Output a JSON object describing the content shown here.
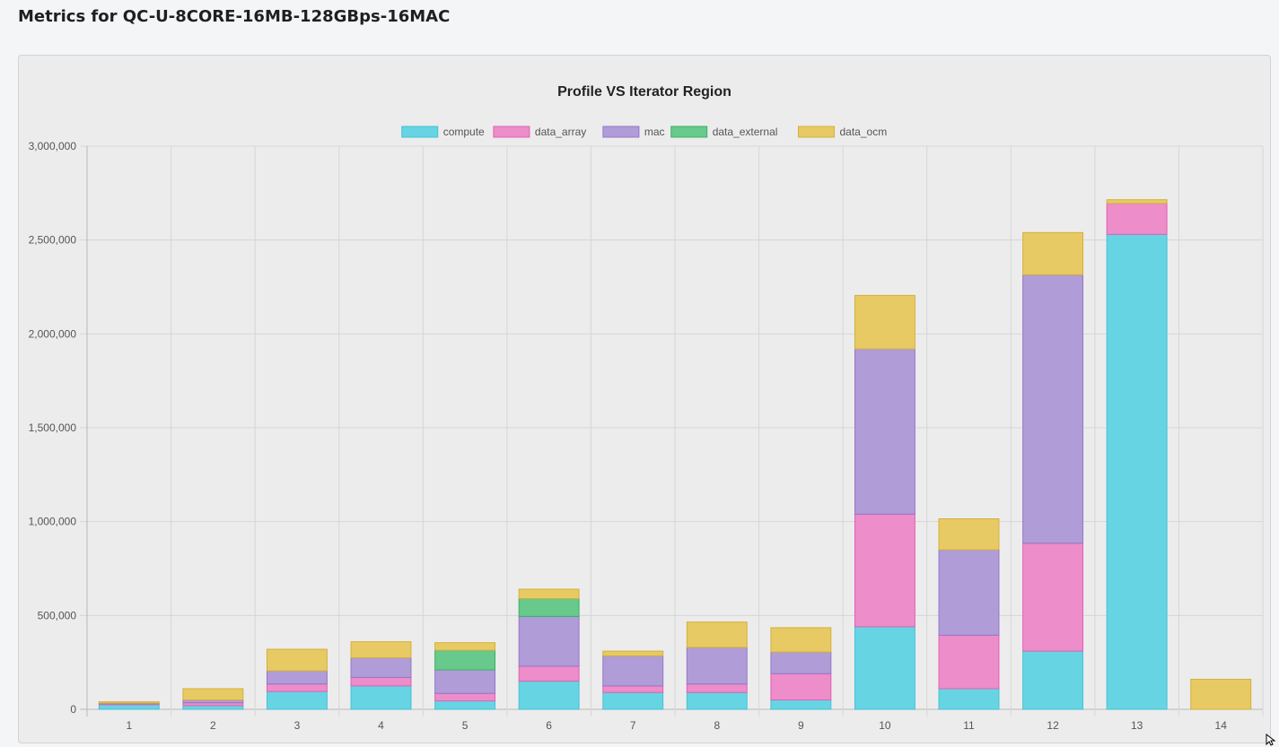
{
  "page": {
    "title": "Metrics for QC-U-8CORE-16MB-128GBps-16MAC"
  },
  "chart_data": {
    "type": "bar",
    "stacked": true,
    "title": "Profile VS Iterator Region",
    "xlabel": "",
    "ylabel": "",
    "ylim": [
      0,
      3000000
    ],
    "yticks": [
      0,
      500000,
      1000000,
      1500000,
      2000000,
      2500000,
      3000000
    ],
    "ytick_labels": [
      "0",
      "500,000",
      "1,000,000",
      "1,500,000",
      "2,000,000",
      "2,500,000",
      "3,000,000"
    ],
    "grid": true,
    "legend_position": "top-center",
    "categories": [
      "1",
      "2",
      "3",
      "4",
      "5",
      "6",
      "7",
      "8",
      "9",
      "10",
      "11",
      "12",
      "13",
      "14"
    ],
    "series": [
      {
        "name": "compute",
        "fill": "#67d4e3",
        "stroke": "#45c2d6",
        "values": [
          25000,
          20000,
          95000,
          125000,
          45000,
          150000,
          90000,
          90000,
          50000,
          440000,
          110000,
          310000,
          2530000,
          0
        ]
      },
      {
        "name": "data_array",
        "fill": "#ed8dca",
        "stroke": "#e062b4",
        "values": [
          5000,
          15000,
          40000,
          45000,
          40000,
          80000,
          35000,
          45000,
          140000,
          600000,
          285000,
          575000,
          165000,
          0
        ]
      },
      {
        "name": "mac",
        "fill": "#b09cd7",
        "stroke": "#9478c8",
        "values": [
          3000,
          15000,
          70000,
          105000,
          125000,
          265000,
          160000,
          195000,
          115000,
          880000,
          455000,
          1430000,
          0,
          0
        ]
      },
      {
        "name": "data_external",
        "fill": "#67c98b",
        "stroke": "#3fae69",
        "values": [
          0,
          0,
          0,
          0,
          105000,
          95000,
          0,
          0,
          0,
          0,
          0,
          0,
          0,
          0
        ]
      },
      {
        "name": "data_ocm",
        "fill": "#e8ca64",
        "stroke": "#d4b03c",
        "values": [
          7000,
          60000,
          115000,
          85000,
          40000,
          50000,
          25000,
          135000,
          130000,
          285000,
          165000,
          225000,
          20000,
          160000
        ]
      }
    ]
  }
}
